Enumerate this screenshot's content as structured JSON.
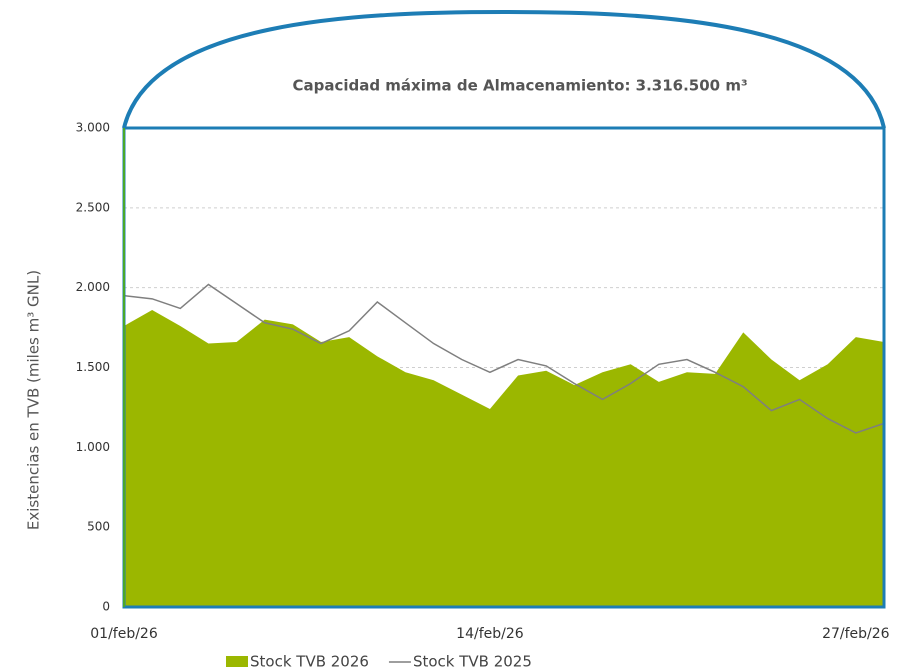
{
  "chart_data": {
    "type": "area",
    "annotation": "Capacidad máxima de Almacenamiento: 3.316.500 m³",
    "y_label": "Existencias en TVB (miles m³ GNL)",
    "categories": [
      "01/feb/26",
      null,
      null,
      null,
      null,
      null,
      null,
      null,
      null,
      null,
      null,
      null,
      null,
      "14/feb/26",
      null,
      null,
      null,
      null,
      null,
      null,
      null,
      null,
      null,
      null,
      null,
      null,
      "27/feb/26",
      null
    ],
    "series": [
      {
        "name": "Stock TVB 2026",
        "color": "#9bb700",
        "kind": "area",
        "values": [
          1760,
          1860,
          1760,
          1650,
          1660,
          1800,
          1770,
          1660,
          1690,
          1570,
          1470,
          1420,
          1330,
          1240,
          1450,
          1480,
          1390,
          1470,
          1520,
          1410,
          1470,
          1460,
          1720,
          1550,
          1420,
          1520,
          1690,
          1660
        ]
      },
      {
        "name": "Stock TVB 2025",
        "color": "#7f7f7f",
        "kind": "line",
        "values": [
          1950,
          1930,
          1870,
          2020,
          1900,
          1780,
          1740,
          1650,
          1730,
          1910,
          1780,
          1650,
          1550,
          1470,
          1550,
          1510,
          1400,
          1300,
          1400,
          1520,
          1550,
          1470,
          1380,
          1230,
          1300,
          1180,
          1090,
          1150
        ]
      }
    ],
    "ylim": [
      0,
      3000
    ],
    "yticks": [
      0,
      500,
      {
        "value": 1000,
        "label": "1.000"
      },
      {
        "value": 1500,
        "label": "1.500"
      },
      {
        "value": 2000,
        "label": "2.000"
      },
      {
        "value": 2500,
        "label": "2.500"
      },
      {
        "value": 3000,
        "label": "3.000"
      }
    ],
    "grid": true,
    "legend": "bottom"
  }
}
